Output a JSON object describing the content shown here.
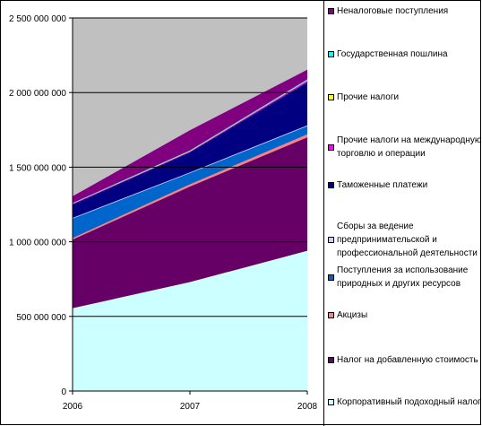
{
  "chart_data": {
    "type": "area",
    "stacked": true,
    "x": [
      "2006",
      "2007",
      "2008"
    ],
    "ylim": [
      0,
      2500000000
    ],
    "yticks": [
      "0",
      "500 000 000",
      "1 000 000 000",
      "1 500 000 000",
      "2 000 000 000",
      "2 500 000 000"
    ],
    "grid": "horizontal",
    "legend_position": "right",
    "plot_background": "#C0C0C0",
    "series": [
      {
        "name": "Корпоративный подоходный налог",
        "color": "#CCFFFF",
        "values": [
          555000000,
          730000000,
          940000000
        ]
      },
      {
        "name": "Налог на добавленную стоимость",
        "color": "#660066",
        "values": [
          460000000,
          640000000,
          760000000
        ]
      },
      {
        "name": "Акцизы",
        "color": "#FF8080",
        "values": [
          10000000,
          15000000,
          20000000
        ]
      },
      {
        "name": "Поступления за использование природных и других ресурсов",
        "color": "#0066CC",
        "values": [
          130000000,
          75000000,
          55000000
        ]
      },
      {
        "name": "Сборы за ведение предпринимательской и профессиональной деятельности",
        "color": "#CCCCFF",
        "values": [
          5000000,
          5000000,
          5000000
        ]
      },
      {
        "name": "Таможенные платежи",
        "color": "#000080",
        "values": [
          90000000,
          135000000,
          290000000
        ]
      },
      {
        "name": "Прочие налоги на международную торговлю и операции",
        "color": "#FF00FF",
        "values": [
          5000000,
          5000000,
          10000000
        ]
      },
      {
        "name": "Прочие налоги",
        "color": "#FFFF00",
        "values": [
          2000000,
          3000000,
          3000000
        ]
      },
      {
        "name": "Государственная пошлина",
        "color": "#00FFFF",
        "values": [
          3000000,
          4000000,
          5000000
        ]
      },
      {
        "name": "Неналоговые поступления",
        "color": "#800080",
        "values": [
          45000000,
          135000000,
          65000000
        ]
      }
    ]
  },
  "legend_order": [
    9,
    8,
    7,
    6,
    5,
    4,
    3,
    2,
    1,
    0
  ]
}
